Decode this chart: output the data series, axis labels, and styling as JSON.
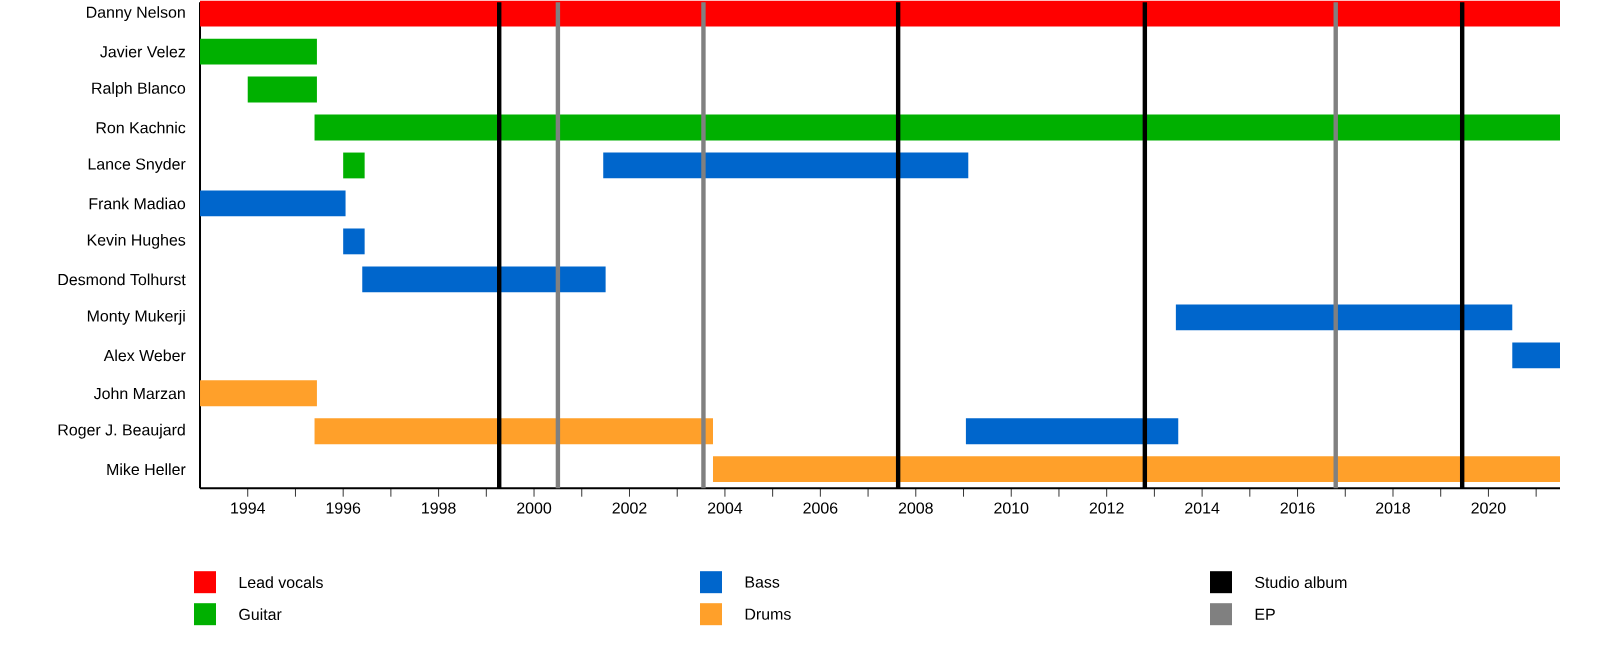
{
  "chart_data": {
    "type": "bar",
    "orientation": "horizontal",
    "legend": "bottom",
    "categories": [
      "Danny Nelson",
      "Javier Velez",
      "Ralph Blanco",
      "Ron Kachnic",
      "Lance Snyder",
      "Frank Madiao",
      "Kevin Hughes",
      "Desmond Tolhurst",
      "Monty Mukerji",
      "Alex Weber",
      "John Marzan",
      "Roger J. Beaujard",
      "Mike Heller"
    ],
    "series": [
      {
        "name": "Lead vocals",
        "color": "#ff0000",
        "base": [
          1993,
          null,
          null,
          null,
          null,
          null,
          null,
          null,
          null,
          null,
          null,
          null,
          null
        ],
        "values": [
          28.5,
          null,
          null,
          null,
          null,
          null,
          null,
          null,
          null,
          null,
          null,
          null,
          null
        ]
      },
      {
        "name": "Guitar",
        "color": "#00b000",
        "base": [
          null,
          1993,
          1994,
          1995.4,
          1996,
          null,
          null,
          null,
          null,
          null,
          null,
          null,
          null
        ],
        "values": [
          null,
          2.45,
          1.45,
          26.1,
          0.45,
          null,
          null,
          null,
          null,
          null,
          null,
          null,
          null
        ]
      },
      {
        "name": "Bass",
        "color": "#0066cc",
        "base": [
          null,
          null,
          null,
          null,
          2001.45,
          1993,
          1996,
          1996.4,
          2013.45,
          2020.5,
          null,
          2009.05,
          null
        ],
        "values": [
          null,
          null,
          null,
          null,
          7.65,
          3.05,
          0.45,
          5.1,
          7.05,
          1.0,
          null,
          4.45,
          null
        ]
      },
      {
        "name": "Drums",
        "color": "#ffa02a",
        "base": [
          null,
          null,
          null,
          null,
          null,
          null,
          null,
          null,
          null,
          null,
          1993,
          1995.4,
          2003.75
        ],
        "values": [
          null,
          null,
          null,
          null,
          null,
          null,
          null,
          null,
          null,
          null,
          2.45,
          8.35,
          17.75
        ]
      }
    ],
    "xlim": [
      1993,
      2021.5
    ],
    "xticks": [
      1994,
      {
        "value": 1995,
        "label": null
      },
      1996,
      {
        "value": 1997,
        "label": null
      },
      1998,
      {
        "value": 1999,
        "label": null
      },
      2000,
      {
        "value": 2001,
        "label": null
      },
      2002,
      {
        "value": 2003,
        "label": null
      },
      2004,
      {
        "value": 2005,
        "label": null
      },
      2006,
      {
        "value": 2007,
        "label": null
      },
      2008,
      {
        "value": 2009,
        "label": null
      },
      2010,
      {
        "value": 2011,
        "label": null
      },
      2012,
      {
        "value": 2013,
        "label": null
      },
      2014,
      {
        "value": 2015,
        "label": null
      },
      2016,
      {
        "value": 2017,
        "label": null
      },
      2018,
      {
        "value": 2019,
        "label": null
      },
      2020,
      {
        "value": 2021,
        "label": null
      }
    ],
    "ref_lines": [
      {
        "axis": "x",
        "value": 1999.27,
        "label": "Studio album",
        "color": "#000000"
      },
      {
        "axis": "x",
        "value": 2000.5,
        "label": "EP",
        "color": "#808080"
      },
      {
        "axis": "x",
        "value": 2003.55,
        "color": "#808080"
      },
      {
        "axis": "x",
        "value": 2007.63,
        "color": "#000000"
      },
      {
        "axis": "x",
        "value": 2012.8,
        "color": "#000000"
      },
      {
        "axis": "x",
        "value": 2016.8,
        "color": "#808080"
      },
      {
        "axis": "x",
        "value": 2019.45,
        "color": "#000000"
      }
    ]
  }
}
